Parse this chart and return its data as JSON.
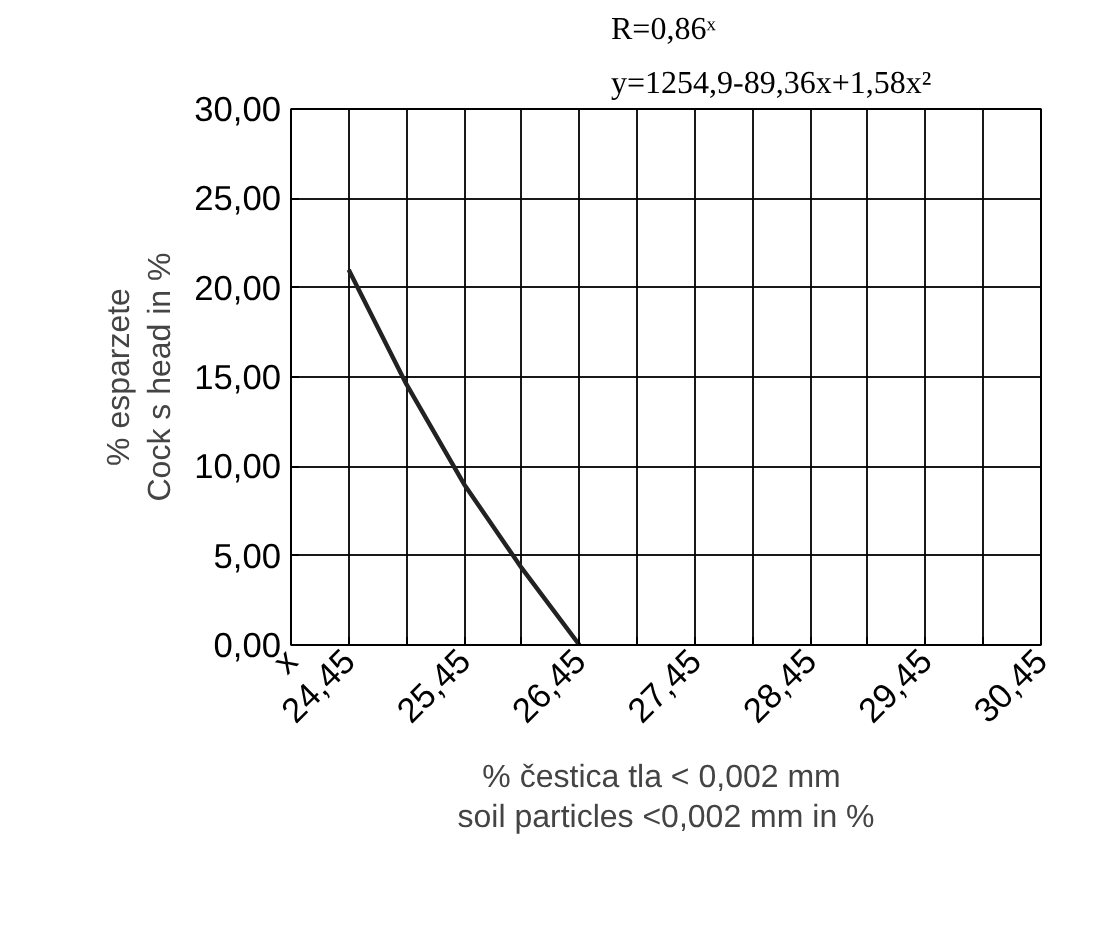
{
  "chart_data": {
    "type": "line",
    "annotations": [
      "R=0,86ˣ",
      "y=1254,9-89,36x+1,58x²"
    ],
    "xlabel": "%  čestica tla < 0,002 mm\nsoil particles <0,002 mm in %",
    "ylabel": "% esparzete\nCock s head in %",
    "x": [
      24.45,
      24.95,
      25.45,
      25.95,
      26.45
    ],
    "series": [
      {
        "color": "#222222",
        "values": [
          21.0,
          14.6,
          9.0,
          4.3,
          0.0
        ]
      }
    ],
    "xlim": [
      23.95,
      30.45
    ],
    "xticks": [
      {
        "value": 23.95,
        "label": "x"
      },
      {
        "value": 24.45,
        "label": "24,45"
      },
      {
        "value": 24.95,
        "label": null
      },
      {
        "value": 25.45,
        "label": "25,45"
      },
      {
        "value": 25.95,
        "label": null
      },
      {
        "value": 26.45,
        "label": "26,45"
      },
      {
        "value": 26.95,
        "label": null
      },
      {
        "value": 27.45,
        "label": "27,45"
      },
      {
        "value": 27.95,
        "label": null
      },
      {
        "value": 28.45,
        "label": "28,45"
      },
      {
        "value": 28.95,
        "label": null
      },
      {
        "value": 29.45,
        "label": "29,45"
      },
      {
        "value": 29.95,
        "label": null
      },
      {
        "value": 30.45,
        "label": "30,45"
      }
    ],
    "ylim": [
      0,
      30
    ],
    "yticks": [
      {
        "value": 0,
        "label": "0,00"
      },
      {
        "value": 5,
        "label": "5,00"
      },
      {
        "value": 10,
        "label": "10,00"
      },
      {
        "value": 15,
        "label": "15,00"
      },
      {
        "value": 20,
        "label": "20,00"
      },
      {
        "value": 25,
        "label": "25,00"
      },
      {
        "value": 30,
        "label": "30,00"
      }
    ],
    "grid": true,
    "marker": "none",
    "line_style": "solid"
  }
}
